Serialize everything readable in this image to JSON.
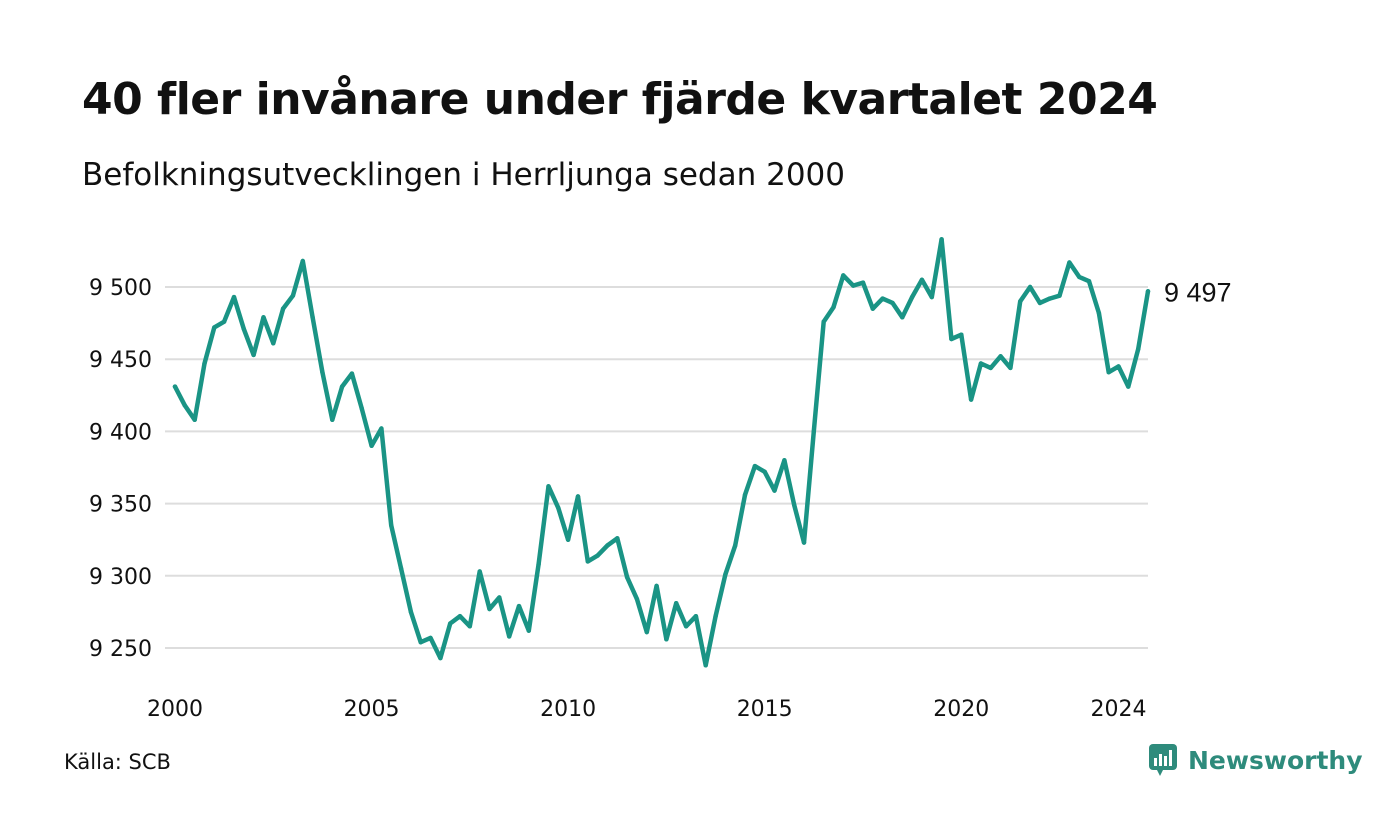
{
  "header": {
    "title": "40 fler invånare under fjärde kvartalet 2024",
    "subtitle": "Befolkningsutvecklingen i Herrljunga sedan 2000"
  },
  "footer": {
    "source": "Källa: SCB",
    "brand": "Newsworthy",
    "brand_icon": "newsworthy-logo-icon"
  },
  "colors": {
    "line": "#1a9485",
    "grid": "#dddddd",
    "brand": "#2e8b7c"
  },
  "chart_data": {
    "type": "line",
    "title": "40 fler invånare under fjärde kvartalet 2024",
    "subtitle": "Befolkningsutvecklingen i Herrljunga sedan 2000",
    "xlabel": "",
    "ylabel": "",
    "x_ticks": [
      "2000",
      "2005",
      "2010",
      "2015",
      "2020",
      "2024"
    ],
    "x_tick_values": [
      2000,
      2005,
      2010,
      2015,
      2020,
      2024
    ],
    "y_ticks": [
      "9 250",
      "9 300",
      "9 350",
      "9 400",
      "9 450",
      "9 500"
    ],
    "y_tick_values": [
      9250,
      9300,
      9350,
      9400,
      9450,
      9500
    ],
    "ylim": [
      9235,
      9540
    ],
    "xlim": [
      2000,
      2025
    ],
    "grid": true,
    "end_label": "9 497",
    "series": [
      {
        "x": [
          "2000-Q1",
          "2000-Q2",
          "2000-Q3",
          "2000-Q4",
          "2001-Q1",
          "2001-Q2",
          "2001-Q3",
          "2001-Q4",
          "2002-Q1",
          "2002-Q2",
          "2002-Q3",
          "2002-Q4",
          "2003-Q1",
          "2003-Q2",
          "2003-Q3",
          "2003-Q4",
          "2004-Q1",
          "2004-Q2",
          "2004-Q3",
          "2004-Q4",
          "2005-Q1",
          "2005-Q2",
          "2005-Q3",
          "2005-Q4",
          "2006-Q1",
          "2006-Q2",
          "2006-Q3",
          "2006-Q4",
          "2007-Q1",
          "2007-Q2",
          "2007-Q3",
          "2007-Q4",
          "2008-Q1",
          "2008-Q2",
          "2008-Q3",
          "2008-Q4",
          "2009-Q1",
          "2009-Q2",
          "2009-Q3",
          "2009-Q4",
          "2010-Q1",
          "2010-Q2",
          "2010-Q3",
          "2010-Q4",
          "2011-Q1",
          "2011-Q2",
          "2011-Q3",
          "2011-Q4",
          "2012-Q1",
          "2012-Q2",
          "2012-Q3",
          "2012-Q4",
          "2013-Q1",
          "2013-Q2",
          "2013-Q3",
          "2013-Q4",
          "2014-Q1",
          "2014-Q2",
          "2014-Q3",
          "2014-Q4",
          "2015-Q1",
          "2015-Q2",
          "2015-Q3",
          "2015-Q4",
          "2016-Q1",
          "2016-Q2",
          "2016-Q3",
          "2016-Q4",
          "2017-Q1",
          "2017-Q2",
          "2017-Q3",
          "2017-Q4",
          "2018-Q1",
          "2018-Q2",
          "2018-Q3",
          "2018-Q4",
          "2019-Q1",
          "2019-Q2",
          "2019-Q3",
          "2019-Q4",
          "2020-Q1",
          "2020-Q2",
          "2020-Q3",
          "2020-Q4",
          "2021-Q1",
          "2021-Q2",
          "2021-Q3",
          "2021-Q4",
          "2022-Q1",
          "2022-Q2",
          "2022-Q3",
          "2022-Q4",
          "2023-Q1",
          "2023-Q2",
          "2023-Q3",
          "2023-Q4",
          "2024-Q1",
          "2024-Q2",
          "2024-Q3",
          "2024-Q4"
        ],
        "values": [
          9431,
          9418,
          9408,
          9447,
          9472,
          9476,
          9493,
          9471,
          9453,
          9479,
          9461,
          9485,
          9494,
          9518,
          9479,
          9441,
          9408,
          9431,
          9440,
          9416,
          9390,
          9402,
          9335,
          9305,
          9275,
          9254,
          9257,
          9243,
          9267,
          9272,
          9265,
          9303,
          9277,
          9285,
          9258,
          9279,
          9262,
          9308,
          9362,
          9347,
          9325,
          9355,
          9310,
          9314,
          9321,
          9326,
          9299,
          9284,
          9261,
          9293,
          9256,
          9281,
          9265,
          9272,
          9238,
          9272,
          9301,
          9321,
          9356,
          9376,
          9372,
          9359,
          9380,
          9349,
          9323,
          9400,
          9476,
          9486,
          9508,
          9501,
          9503,
          9485,
          9492,
          9489,
          9479,
          9493,
          9505,
          9493,
          9533,
          9464,
          9467,
          9422,
          9447,
          9444,
          9452,
          9444,
          9490,
          9500,
          9489,
          9492,
          9494,
          9517,
          9507,
          9504,
          9482,
          9441,
          9445,
          9431,
          9457,
          9497
        ]
      }
    ]
  }
}
